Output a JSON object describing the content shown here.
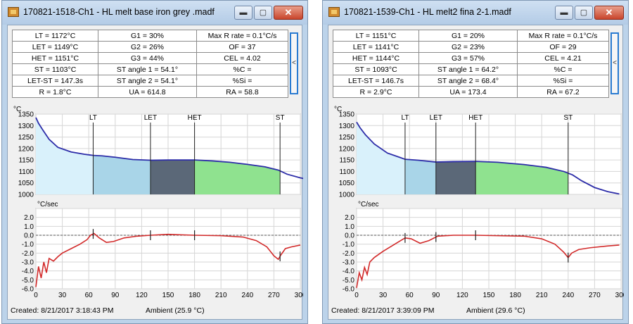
{
  "windows": [
    {
      "title": "170821-1518-Ch1 - HL melt base iron grey .madf",
      "buttons": {
        "minimize": "▬",
        "maximize": "▢",
        "close": "✕"
      },
      "side_toggle": "<",
      "stats": [
        [
          "LT = 1172°C",
          "G1 = 30%",
          "Max R rate = 0.1°C/s"
        ],
        [
          "LET = 1149°C",
          "G2 = 26%",
          "OF = 37"
        ],
        [
          "HET = 1151°C",
          "G3 = 44%",
          "CEL = 4.02"
        ],
        [
          "ST = 1103°C",
          "ST angle 1 = 54.1°",
          "%C ="
        ],
        [
          "LET-ST = 147.3s",
          "ST angle 2 = 54.1°",
          "%Si ="
        ],
        [
          "R = 1.8°C",
          "UA = 614.8",
          "RA = 58.8"
        ]
      ],
      "status": {
        "created": "Created: 8/21/2017 3:18:43 PM",
        "ambient": "Ambient (25.9 °C)"
      },
      "chart_data": {
        "type": "line",
        "upper": {
          "ylabel": "°C",
          "ylim": [
            1000,
            1350
          ],
          "yticks": [
            "1350",
            "1300",
            "1250",
            "1200",
            "1150",
            "1100",
            "1050",
            "1000"
          ],
          "markers": [
            {
              "label": "LT",
              "x": 65
            },
            {
              "label": "LET",
              "x": 130
            },
            {
              "label": "HET",
              "x": 180
            },
            {
              "label": "ST",
              "x": 277
            }
          ],
          "regions": [
            {
              "from": 0,
              "to": 65,
              "color": "#d9f1fb"
            },
            {
              "from": 65,
              "to": 130,
              "color": "#a9d5e8"
            },
            {
              "from": 130,
              "to": 180,
              "color": "#5b6878"
            },
            {
              "from": 180,
              "to": 277,
              "color": "#8fe28f"
            }
          ],
          "series": [
            {
              "color": "#2c2ca8",
              "points": [
                [
                  0,
                  1335
                ],
                [
                  3,
                  1310
                ],
                [
                  8,
                  1280
                ],
                [
                  15,
                  1240
                ],
                [
                  25,
                  1205
                ],
                [
                  40,
                  1185
                ],
                [
                  55,
                  1175
                ],
                [
                  65,
                  1170
                ],
                [
                  75,
                  1168
                ],
                [
                  90,
                  1162
                ],
                [
                  110,
                  1152
                ],
                [
                  130,
                  1149
                ],
                [
                  150,
                  1150
                ],
                [
                  180,
                  1150
                ],
                [
                  200,
                  1146
                ],
                [
                  220,
                  1140
                ],
                [
                  240,
                  1131
                ],
                [
                  260,
                  1120
                ],
                [
                  275,
                  1106
                ],
                [
                  285,
                  1088
                ],
                [
                  300,
                  1072
                ],
                [
                  310,
                  1065
                ]
              ]
            }
          ]
        },
        "lower": {
          "ylabel": "°C/sec",
          "ylim": [
            -6,
            3
          ],
          "yticks": [
            "3.0",
            "2.0",
            "1.0",
            "0.0",
            "-1.0",
            "-2.0",
            "-3.0",
            "-4.0",
            "-5.0",
            "-6.0"
          ],
          "xticks": [
            "0",
            "30",
            "60",
            "90",
            "120",
            "150",
            "180",
            "210",
            "240",
            "270",
            "300"
          ],
          "xlim": [
            0,
            300
          ],
          "markers_x": [
            65,
            130,
            180,
            277
          ],
          "series": [
            {
              "color": "#d22a2a",
              "points": [
                [
                  0,
                  -5.8
                ],
                [
                  3,
                  -3.5
                ],
                [
                  6,
                  -4.8
                ],
                [
                  9,
                  -3.0
                ],
                [
                  12,
                  -4.2
                ],
                [
                  15,
                  -2.6
                ],
                [
                  20,
                  -2.9
                ],
                [
                  25,
                  -2.4
                ],
                [
                  30,
                  -2.0
                ],
                [
                  40,
                  -1.5
                ],
                [
                  50,
                  -1.0
                ],
                [
                  58,
                  -0.5
                ],
                [
                  62,
                  0.0
                ],
                [
                  66,
                  0.2
                ],
                [
                  72,
                  -0.3
                ],
                [
                  80,
                  -0.8
                ],
                [
                  88,
                  -0.7
                ],
                [
                  100,
                  -0.3
                ],
                [
                  115,
                  -0.1
                ],
                [
                  130,
                  0.0
                ],
                [
                  150,
                  0.1
                ],
                [
                  180,
                  0.0
                ],
                [
                  210,
                  -0.05
                ],
                [
                  235,
                  -0.2
                ],
                [
                  250,
                  -0.6
                ],
                [
                  262,
                  -1.3
                ],
                [
                  270,
                  -2.3
                ],
                [
                  275,
                  -2.7
                ],
                [
                  278,
                  -2.2
                ],
                [
                  283,
                  -1.5
                ],
                [
                  290,
                  -1.3
                ],
                [
                  300,
                  -1.1
                ]
              ]
            }
          ]
        }
      }
    },
    {
      "title": "170821-1539-Ch1 - HL melt2 fina 2-1.madf",
      "buttons": {
        "minimize": "▬",
        "maximize": "▢",
        "close": "✕"
      },
      "side_toggle": "<",
      "stats": [
        [
          "LT = 1151°C",
          "G1 = 20%",
          "Max R rate = 0.1°C/s"
        ],
        [
          "LET = 1141°C",
          "G2 = 23%",
          "OF = 29"
        ],
        [
          "HET = 1144°C",
          "G3 = 57%",
          "CEL = 4.21"
        ],
        [
          "ST = 1093°C",
          "ST angle 1 = 64.2°",
          "%C ="
        ],
        [
          "LET-ST = 146.7s",
          "ST angle 2 = 68.4°",
          "%Si ="
        ],
        [
          "R = 2.9°C",
          "UA = 173.4",
          "RA = 67.2"
        ]
      ],
      "status": {
        "created": "Created: 8/21/2017 3:39:09 PM",
        "ambient": "Ambient (29.6 °C)"
      },
      "chart_data": {
        "type": "line",
        "upper": {
          "ylabel": "°C",
          "ylim": [
            1000,
            1350
          ],
          "yticks": [
            "1350",
            "1300",
            "1250",
            "1200",
            "1150",
            "1100",
            "1050",
            "1000"
          ],
          "markers": [
            {
              "label": "LT",
              "x": 55
            },
            {
              "label": "LET",
              "x": 90
            },
            {
              "label": "HET",
              "x": 135
            },
            {
              "label": "ST",
              "x": 240
            }
          ],
          "regions": [
            {
              "from": 0,
              "to": 55,
              "color": "#d9f1fb"
            },
            {
              "from": 55,
              "to": 90,
              "color": "#a9d5e8"
            },
            {
              "from": 90,
              "to": 135,
              "color": "#5b6878"
            },
            {
              "from": 135,
              "to": 240,
              "color": "#8fe28f"
            }
          ],
          "series": [
            {
              "color": "#2c2ca8",
              "points": [
                [
                  0,
                  1315
                ],
                [
                  4,
                  1290
                ],
                [
                  10,
                  1260
                ],
                [
                  20,
                  1220
                ],
                [
                  35,
                  1180
                ],
                [
                  50,
                  1160
                ],
                [
                  55,
                  1153
                ],
                [
                  70,
                  1149
                ],
                [
                  90,
                  1141
                ],
                [
                  110,
                  1143
                ],
                [
                  135,
                  1144
                ],
                [
                  160,
                  1140
                ],
                [
                  190,
                  1130
                ],
                [
                  215,
                  1118
                ],
                [
                  235,
                  1100
                ],
                [
                  245,
                  1085
                ],
                [
                  255,
                  1060
                ],
                [
                  270,
                  1030
                ],
                [
                  285,
                  1012
                ],
                [
                  298,
                  1002
                ]
              ]
            }
          ]
        },
        "lower": {
          "ylabel": "°C/sec",
          "ylim": [
            -6,
            3
          ],
          "yticks": [
            "3.0",
            "2.0",
            "1.0",
            "0.0",
            "-1.0",
            "-2.0",
            "-3.0",
            "-4.0",
            "-5.0",
            "-6.0"
          ],
          "xticks": [
            "0",
            "30",
            "60",
            "90",
            "120",
            "150",
            "180",
            "210",
            "240",
            "270",
            "300"
          ],
          "xlim": [
            0,
            300
          ],
          "markers_x": [
            55,
            90,
            135,
            240
          ],
          "series": [
            {
              "color": "#d22a2a",
              "points": [
                [
                  0,
                  -5.9
                ],
                [
                  3,
                  -4.2
                ],
                [
                  6,
                  -5.0
                ],
                [
                  9,
                  -3.6
                ],
                [
                  12,
                  -4.4
                ],
                [
                  15,
                  -3.0
                ],
                [
                  20,
                  -2.5
                ],
                [
                  30,
                  -1.8
                ],
                [
                  40,
                  -1.2
                ],
                [
                  50,
                  -0.6
                ],
                [
                  55,
                  -0.3
                ],
                [
                  62,
                  -0.4
                ],
                [
                  72,
                  -0.9
                ],
                [
                  82,
                  -0.6
                ],
                [
                  92,
                  -0.1
                ],
                [
                  110,
                  0.0
                ],
                [
                  135,
                  0.0
                ],
                [
                  160,
                  -0.05
                ],
                [
                  190,
                  -0.1
                ],
                [
                  210,
                  -0.4
                ],
                [
                  225,
                  -1.0
                ],
                [
                  235,
                  -1.9
                ],
                [
                  240,
                  -2.5
                ],
                [
                  244,
                  -2.0
                ],
                [
                  252,
                  -1.6
                ],
                [
                  265,
                  -1.4
                ],
                [
                  285,
                  -1.2
                ],
                [
                  298,
                  -1.1
                ]
              ]
            }
          ]
        }
      }
    }
  ]
}
